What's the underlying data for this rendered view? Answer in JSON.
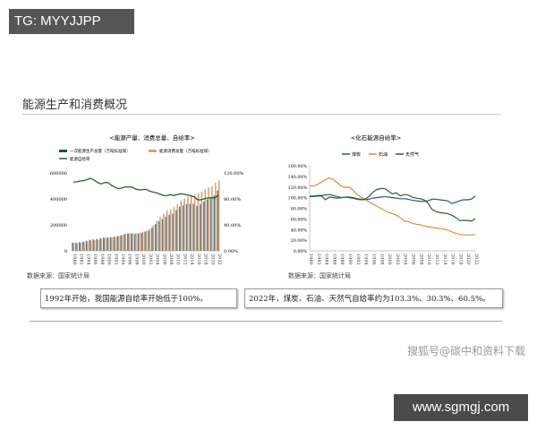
{
  "tag": "TG: MYYJJPP",
  "title": "能源生产和消费概况",
  "left_source": "数据来源：国家统计局",
  "right_source": "数据来源：国家统计局",
  "left_note": "1992年开始，我国能源自给率开始低于100%。",
  "right_note": "2022年，煤炭、石油、天然气自给率约为103.3%、30.3%、60.5%。",
  "watermark": "搜狐号@碳中和资料下载",
  "site": "www.sgmgj.com",
  "colors": {
    "production": "#1f4e5f",
    "consumption": "#d9a074",
    "ratio": "#2e5e2e",
    "coal": "#1f5e73",
    "oil": "#e08a3c",
    "gas": "#2e5e2e"
  },
  "chart_data": [
    {
      "type": "bar",
      "title": "<能源产量、消费总量、自给率>",
      "x": [
        1980,
        1981,
        1982,
        1983,
        1984,
        1985,
        1986,
        1987,
        1988,
        1989,
        1990,
        1991,
        1992,
        1993,
        1994,
        1995,
        1996,
        1997,
        1998,
        1999,
        2000,
        2001,
        2002,
        2003,
        2004,
        2005,
        2006,
        2007,
        2008,
        2009,
        2010,
        2011,
        2012,
        2013,
        2014,
        2015,
        2016,
        2017,
        2018,
        2019,
        2020,
        2021,
        2022
      ],
      "xticks": [
        "1980",
        "1982",
        "1984",
        "1986",
        "1988",
        "1990",
        "1992",
        "1994",
        "1996",
        "1998",
        "2000",
        "2002",
        "2004",
        "2006",
        "2008",
        "2010",
        "2012",
        "2014",
        "2016",
        "2018",
        "2020",
        "2022"
      ],
      "yticks_left": [
        "0",
        "200000",
        "400000",
        "600000"
      ],
      "ylim_left": [
        0,
        600000
      ],
      "yticks_right": [
        "0.00%",
        "40.00%",
        "80.00%",
        "120.00%"
      ],
      "ylim_right": [
        0,
        120
      ],
      "series": [
        {
          "name": "一次能源生产总量（万吨标准煤）",
          "type": "bar",
          "values": [
            63735,
            63227,
            66778,
            71270,
            77855,
            85546,
            88124,
            91266,
            95801,
            101639,
            103922,
            104844,
            107256,
            111059,
            118729,
            129034,
            133032,
            133460,
            129834,
            131935,
            138570,
            147425,
            156277,
            178299,
            206108,
            229007,
            244763,
            264173,
            277419,
            286092,
            312125,
            340178,
            351041,
            358784,
            362212,
            361476,
            345954,
            358867,
            378859,
            397317,
            407295,
            427115,
            466000
          ]
        },
        {
          "name": "能源消费总量（万吨标准煤）",
          "type": "bar",
          "values": [
            60275,
            59447,
            62067,
            66040,
            70904,
            76682,
            80850,
            86632,
            92997,
            96934,
            98703,
            103783,
            109170,
            115993,
            122737,
            131176,
            135192,
            135909,
            136184,
            140569,
            146964,
            155547,
            169577,
            197083,
            230281,
            261369,
            286467,
            311442,
            320611,
            336126,
            360648,
            387043,
            402138,
            416913,
            428334,
            434113,
            441492,
            455827,
            471925,
            487488,
            498314,
            524000,
            541000
          ]
        },
        {
          "name": "能源自给率",
          "type": "line",
          "axis": "right",
          "values": [
            105.7,
            106.4,
            107.6,
            107.9,
            109.8,
            111.6,
            109.0,
            105.3,
            103.0,
            104.9,
            105.3,
            101.0,
            98.2,
            95.7,
            96.7,
            98.4,
            98.4,
            98.2,
            95.3,
            93.9,
            94.3,
            94.8,
            92.2,
            90.5,
            89.5,
            87.6,
            85.4,
            84.8,
            86.5,
            85.1,
            86.5,
            87.9,
            87.3,
            86.1,
            84.6,
            83.3,
            78.4,
            78.7,
            80.3,
            81.5,
            81.7,
            81.5,
            86.1
          ]
        }
      ]
    },
    {
      "type": "line",
      "title": "<化石能源自给率>",
      "x": [
        1980,
        1981,
        1982,
        1983,
        1984,
        1985,
        1986,
        1987,
        1988,
        1989,
        1990,
        1991,
        1992,
        1993,
        1994,
        1995,
        1996,
        1997,
        1998,
        1999,
        2000,
        2001,
        2002,
        2003,
        2004,
        2005,
        2006,
        2007,
        2008,
        2009,
        2010,
        2011,
        2012,
        2013,
        2014,
        2015,
        2016,
        2017,
        2018,
        2019,
        2020,
        2021,
        2022
      ],
      "xticks": [
        "1980",
        "1982",
        "1984",
        "1986",
        "1988",
        "1990",
        "1992",
        "1994",
        "1996",
        "1998",
        "2000",
        "2002",
        "2004",
        "2006",
        "2008",
        "2010",
        "2012",
        "2014",
        "2016",
        "2018",
        "2020",
        "2022"
      ],
      "yticks": [
        "0.00%",
        "20.00%",
        "40.00%",
        "60.00%",
        "80.00%",
        "100.00%",
        "120.00%",
        "140.00%",
        "160.00%"
      ],
      "ylim": [
        0,
        160
      ],
      "series": [
        {
          "name": "煤炭",
          "values": [
            103,
            103,
            104,
            104,
            105,
            106,
            104,
            102,
            100,
            101,
            101,
            100,
            98,
            97,
            96,
            97,
            99,
            100,
            101,
            102,
            101,
            100,
            99,
            98,
            98,
            97,
            95,
            94,
            93,
            93,
            94,
            97,
            97,
            96,
            95,
            94,
            89,
            91,
            94,
            96,
            96,
            97,
            103.3
          ]
        },
        {
          "name": "石油",
          "values": [
            122,
            122,
            125,
            129,
            134,
            137,
            134,
            128,
            122,
            119,
            120,
            114,
            106,
            101,
            97,
            92,
            88,
            84,
            80,
            76,
            72,
            70,
            67,
            62,
            56,
            55,
            52,
            50,
            49,
            47,
            45,
            44,
            43,
            42,
            41,
            39,
            36,
            33,
            31,
            30,
            30,
            30,
            30.3
          ]
        },
        {
          "name": "天然气",
          "values": [
            102,
            102,
            103,
            103,
            96,
            101,
            100,
            99,
            100,
            101,
            100,
            99,
            97,
            96,
            97,
            102,
            110,
            115,
            117,
            117,
            112,
            107,
            109,
            103,
            106,
            105,
            101,
            99,
            98,
            96,
            90,
            78,
            74,
            72,
            71,
            70,
            67,
            63,
            57,
            57,
            57,
            56,
            60.5
          ]
        }
      ]
    }
  ]
}
